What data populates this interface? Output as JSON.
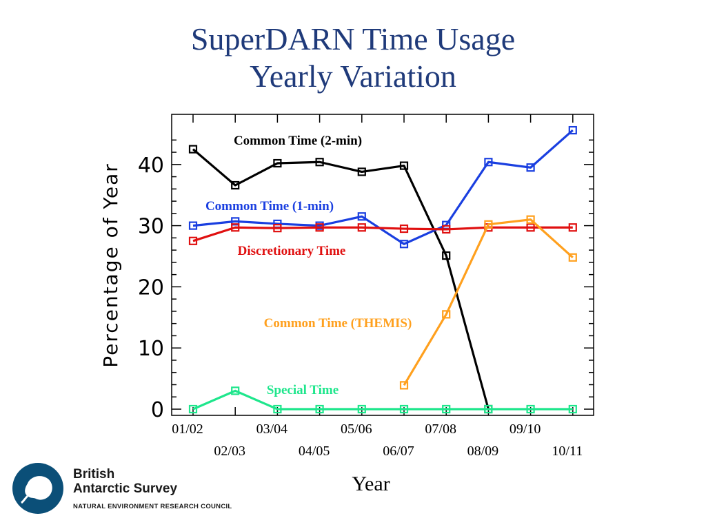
{
  "slide": {
    "title_line1": "SuperDARN Time Usage",
    "title_line2": "Yearly Variation"
  },
  "chart_data": {
    "type": "line",
    "title": "SuperDARN Time Usage Yearly Variation",
    "xlabel": "Year",
    "ylabel": "Percentage of Year",
    "categories": [
      "01/02",
      "02/03",
      "03/04",
      "04/05",
      "05/06",
      "06/07",
      "07/08",
      "08/09",
      "09/10",
      "10/11"
    ],
    "yticks": [
      "0",
      "10",
      "20",
      "30",
      "40"
    ],
    "ylim": [
      0,
      47
    ],
    "grid": false,
    "series": [
      {
        "name": "Common Time (2-min)",
        "color": "#000000",
        "x": [
          "01/02",
          "02/03",
          "03/04",
          "04/05",
          "05/06",
          "06/07",
          "07/08",
          "08/09"
        ],
        "values": [
          42.5,
          36.6,
          40.2,
          40.4,
          38.8,
          39.8,
          25.1,
          0
        ]
      },
      {
        "name": "Common Time (1-min)",
        "color": "#1a3fe0",
        "x": [
          "01/02",
          "02/03",
          "03/04",
          "04/05",
          "05/06",
          "06/07",
          "07/08",
          "08/09",
          "09/10",
          "10/11"
        ],
        "values": [
          30.0,
          30.7,
          30.3,
          30.0,
          31.5,
          27.0,
          30.1,
          40.4,
          39.5,
          45.6
        ]
      },
      {
        "name": "Discretionary Time",
        "color": "#e01010",
        "x": [
          "01/02",
          "02/03",
          "03/04",
          "04/05",
          "05/06",
          "06/07",
          "07/08",
          "08/09",
          "09/10",
          "10/11"
        ],
        "values": [
          27.5,
          29.7,
          29.6,
          29.7,
          29.7,
          29.5,
          29.4,
          29.7,
          29.7,
          29.7
        ]
      },
      {
        "name": "Common Time (THEMIS)",
        "color": "#ffa01e",
        "x": [
          "06/07",
          "07/08",
          "08/09",
          "09/10",
          "10/11"
        ],
        "values": [
          3.9,
          15.5,
          30.2,
          31.0,
          24.8
        ]
      },
      {
        "name": "Special Time",
        "color": "#1ee68c",
        "x": [
          "01/02",
          "02/03",
          "03/04",
          "04/05",
          "05/06",
          "06/07",
          "07/08",
          "08/09",
          "09/10",
          "10/11"
        ],
        "values": [
          0,
          3.0,
          0,
          0,
          0,
          0,
          0,
          0,
          0,
          0
        ]
      }
    ]
  },
  "logo": {
    "name_line1": "British",
    "name_line2": "Antarctic Survey",
    "subtitle": "NATURAL ENVIRONMENT RESEARCH COUNCIL",
    "color": "#0b4f78"
  }
}
